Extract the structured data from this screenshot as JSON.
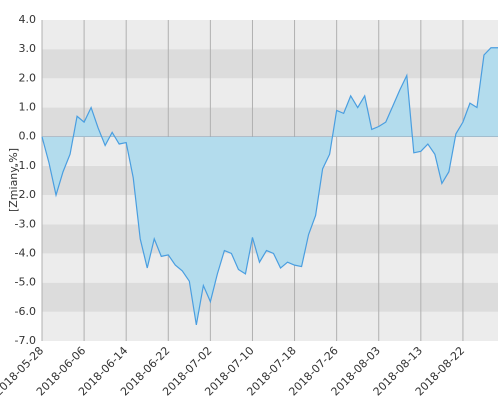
{
  "chart_data": {
    "type": "area",
    "y_label": "[Zmiany,%]",
    "categories": [
      "2018-05-28",
      null,
      null,
      null,
      null,
      null,
      "2018-06-06",
      null,
      null,
      null,
      null,
      null,
      "2018-06-14",
      null,
      null,
      null,
      null,
      null,
      "2018-06-22",
      null,
      null,
      null,
      null,
      null,
      "2018-07-02",
      null,
      null,
      null,
      null,
      null,
      "2018-07-10",
      null,
      null,
      null,
      null,
      null,
      "2018-07-18",
      null,
      null,
      null,
      null,
      null,
      "2018-07-26",
      null,
      null,
      null,
      null,
      null,
      "2018-08-03",
      null,
      null,
      null,
      null,
      null,
      "2018-08-13",
      null,
      null,
      null,
      null,
      null,
      "2018-08-22",
      null,
      null,
      null,
      null,
      null
    ],
    "values": [
      0,
      -0.9,
      -2.0,
      -1.2,
      -0.6,
      0.7,
      0.5,
      1.0,
      0.3,
      -0.3,
      0.15,
      -0.25,
      -0.2,
      -1.4,
      -3.5,
      -4.5,
      -3.5,
      -4.1,
      -4.05,
      -4.4,
      -4.6,
      -4.95,
      -6.45,
      -5.1,
      -5.65,
      -4.7,
      -3.9,
      -4.0,
      -4.55,
      -4.7,
      -3.45,
      -4.3,
      -3.9,
      -4.0,
      -4.5,
      -4.3,
      -4.4,
      -4.45,
      -3.35,
      -2.7,
      -1.1,
      -0.6,
      0.9,
      0.8,
      1.4,
      1.0,
      1.4,
      0.25,
      0.35,
      0.5,
      1.05,
      1.6,
      2.1,
      -0.55,
      -0.5,
      -0.25,
      -0.6,
      -1.6,
      -1.2,
      0.1,
      0.5,
      1.15,
      1.0,
      2.8,
      3.05,
      3.05
    ],
    "line_color": "#4a9ee0",
    "fill_color": "#b3dced",
    "ylim": [
      -7,
      4
    ],
    "yticks": [
      {
        "value": -7,
        "label": "-7.0"
      },
      {
        "value": -6,
        "label": "-6.0"
      },
      {
        "value": -5,
        "label": "-5.0"
      },
      {
        "value": -4,
        "label": "-4.0"
      },
      {
        "value": -3,
        "label": "-3.0"
      },
      {
        "value": -2,
        "label": "-2.0"
      },
      {
        "value": -1,
        "label": "-1.0"
      },
      {
        "value": 0,
        "label": "0.0"
      },
      {
        "value": 1,
        "label": "1.0"
      },
      {
        "value": 2,
        "label": "2.0"
      },
      {
        "value": 3,
        "label": "3.0"
      },
      {
        "value": 4,
        "label": "4.0"
      }
    ],
    "grid": true
  }
}
